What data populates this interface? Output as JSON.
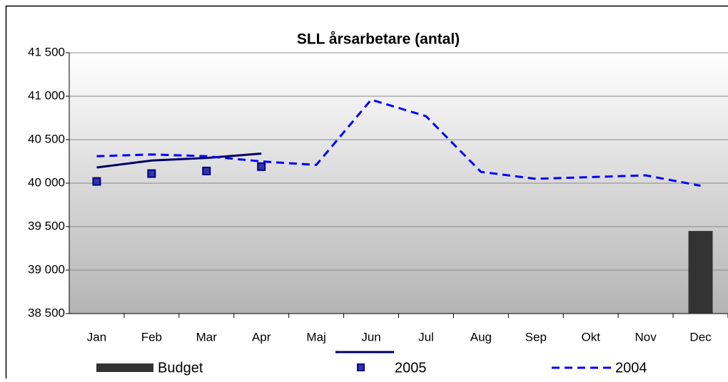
{
  "chart_data": {
    "type": "bar",
    "title": "SLL årsarbetare (antal)",
    "categories": [
      "Jan",
      "Feb",
      "Mar",
      "Apr",
      "Maj",
      "Jun",
      "Jul",
      "Aug",
      "Sep",
      "Okt",
      "Nov",
      "Dec"
    ],
    "series": [
      {
        "name": "Budget",
        "type": "bar",
        "color": "#333333",
        "values": [
          null,
          null,
          null,
          null,
          null,
          null,
          null,
          null,
          null,
          null,
          null,
          39450
        ]
      },
      {
        "type": "line",
        "color": "#000066",
        "dashed": false,
        "values": [
          40180,
          40260,
          40290,
          40340,
          null,
          null,
          null,
          null,
          null,
          null,
          null,
          null
        ]
      },
      {
        "name": "2005",
        "type": "scatter",
        "color": "#000080",
        "values": [
          40020,
          40110,
          40140,
          40190,
          null,
          null,
          null,
          null,
          null,
          null,
          null,
          null
        ]
      },
      {
        "name": "2004",
        "type": "line",
        "color": "#0000ff",
        "dashed": true,
        "values": [
          40310,
          40330,
          40310,
          40250,
          40210,
          40960,
          40770,
          40130,
          40050,
          40070,
          40090,
          39970
        ]
      }
    ],
    "ylim": [
      38500,
      41500
    ],
    "yticks": [
      {
        "value": 38500,
        "label": "38 500"
      },
      {
        "value": 39000,
        "label": "39 000"
      },
      {
        "value": 39500,
        "label": "39 500"
      },
      {
        "value": 40000,
        "label": "40 000"
      },
      {
        "value": 40500,
        "label": "40 500"
      },
      {
        "value": 41000,
        "label": "41 000"
      },
      {
        "value": 41500,
        "label": "41 500"
      }
    ],
    "grid": true,
    "legend": "bottom"
  }
}
